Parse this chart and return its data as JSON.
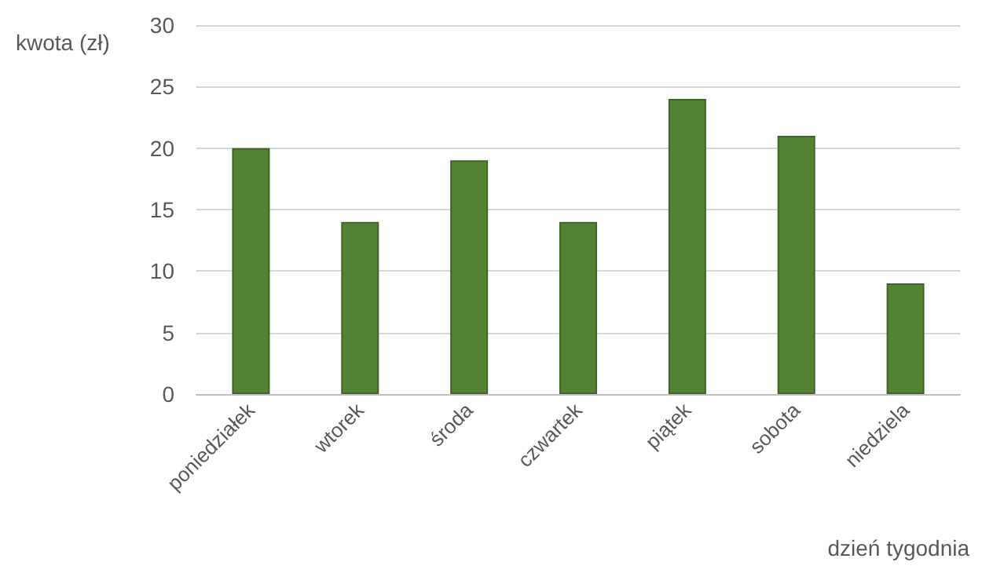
{
  "chart_data": {
    "type": "bar",
    "xlabel": "dzień tygodnia",
    "ylabel": "kwota (zł)",
    "categories": [
      "poniedziałek",
      "wtorek",
      "środa",
      "czwartek",
      "piątek",
      "sobota",
      "niedziela"
    ],
    "values": [
      20,
      14,
      19,
      14,
      24,
      21,
      9
    ],
    "color": "#548235",
    "ylim": [
      0,
      30
    ],
    "yticks": [
      0,
      5,
      10,
      15,
      20,
      25,
      30
    ],
    "grid": "y"
  }
}
